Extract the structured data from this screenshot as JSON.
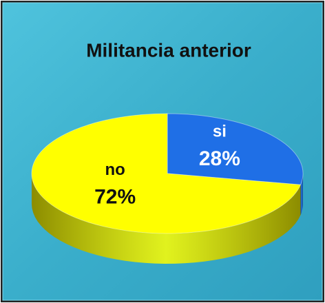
{
  "chart_data": {
    "type": "pie",
    "title": "Militancia anterior",
    "categories": [
      "si",
      "no"
    ],
    "values": [
      28,
      72
    ],
    "value_labels": [
      "28%",
      "72%"
    ],
    "colors": [
      "#1f6fe6",
      "#ffff00"
    ]
  }
}
